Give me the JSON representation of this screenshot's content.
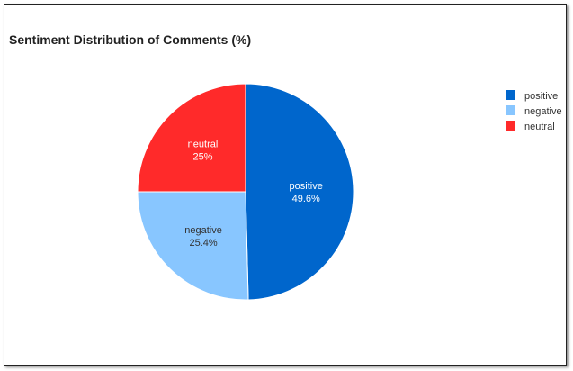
{
  "chart_data": {
    "type": "pie",
    "title": "Sentiment Distribution of Comments (%)",
    "categories": [
      "positive",
      "negative",
      "neutral"
    ],
    "values": [
      49.6,
      25.4,
      25
    ],
    "value_labels": [
      "49.6%",
      "25.4%",
      "25%"
    ],
    "colors": [
      "#0066cc",
      "#88c6ff",
      "#ff2a2a"
    ],
    "label_colors": [
      "#ffffff",
      "#333333",
      "#ffffff"
    ],
    "start_angle_degrees": 0,
    "direction": "clockwise",
    "legend": {
      "position": "right",
      "entries": [
        "positive",
        "negative",
        "neutral"
      ]
    }
  }
}
